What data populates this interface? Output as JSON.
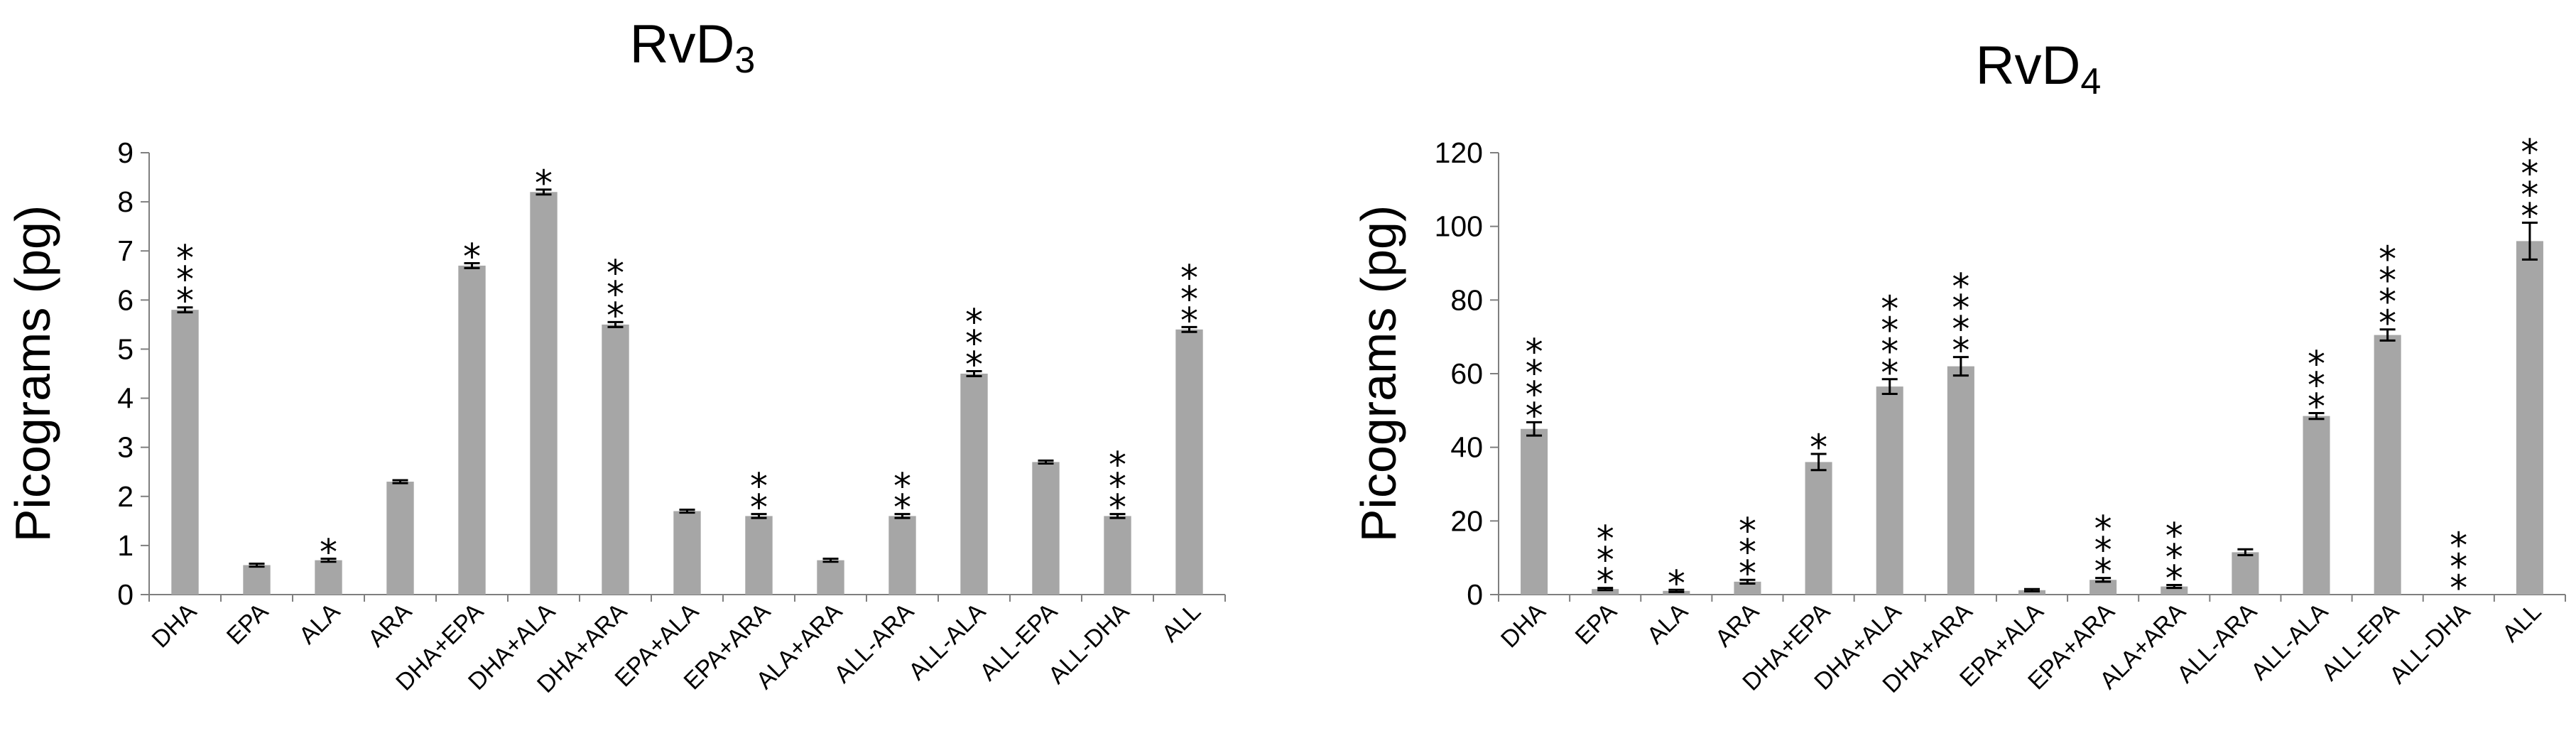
{
  "chart_data": [
    {
      "type": "bar",
      "title_main": "RvD",
      "title_sub": "3",
      "ylabel": "Picograms (pg)",
      "ylim": [
        0,
        9
      ],
      "yticks": [
        0,
        1,
        2,
        3,
        4,
        5,
        6,
        7,
        8,
        9
      ],
      "bar_color": "#a6a6a6",
      "categories": [
        "DHA",
        "EPA",
        "ALA",
        "ARA",
        "DHA+EPA",
        "DHA+ALA",
        "DHA+ARA",
        "EPA+ALA",
        "EPA+ARA",
        "ALA+ARA",
        "ALL-ARA",
        "ALL-ALA",
        "ALL-EPA",
        "ALL-DHA",
        "ALL"
      ],
      "values": [
        5.8,
        0.6,
        0.7,
        2.3,
        6.7,
        8.2,
        5.5,
        1.7,
        1.6,
        0.7,
        1.6,
        4.5,
        2.7,
        1.6,
        5.4
      ],
      "errors": [
        0.05,
        0.03,
        0.03,
        0.03,
        0.05,
        0.05,
        0.05,
        0.03,
        0.04,
        0.03,
        0.04,
        0.05,
        0.03,
        0.04,
        0.05
      ],
      "significance": [
        "***",
        "",
        "*",
        "",
        "*",
        "*",
        "***",
        "",
        "**",
        "",
        "**",
        "***",
        "",
        "***",
        "***"
      ]
    },
    {
      "type": "bar",
      "title_main": "RvD",
      "title_sub": "4",
      "ylabel": "Picograms (pg)",
      "ylim": [
        0,
        120
      ],
      "yticks": [
        0,
        20,
        40,
        60,
        80,
        100,
        120
      ],
      "bar_color": "#a6a6a6",
      "categories": [
        "DHA",
        "EPA",
        "ALA",
        "ARA",
        "DHA+EPA",
        "DHA+ALA",
        "DHA+ARA",
        "EPA+ALA",
        "EPA+ARA",
        "ALA+ARA",
        "ALL-ARA",
        "ALL-ALA",
        "ALL-EPA",
        "ALL-DHA",
        "ALL"
      ],
      "values": [
        45,
        1.5,
        1,
        3.5,
        36,
        56.5,
        62,
        1.2,
        4,
        2.2,
        11.5,
        48.5,
        70.5,
        0,
        96
      ],
      "errors": [
        1.8,
        0.3,
        0.3,
        0.5,
        2.2,
        2.0,
        2.5,
        0.3,
        0.5,
        0.4,
        0.8,
        0.8,
        1.5,
        0,
        5
      ],
      "significance": [
        "****",
        "***",
        "*",
        "***",
        "*",
        "****",
        "****",
        "",
        "***",
        "***",
        "",
        "***",
        "****",
        "***",
        "****"
      ]
    }
  ]
}
